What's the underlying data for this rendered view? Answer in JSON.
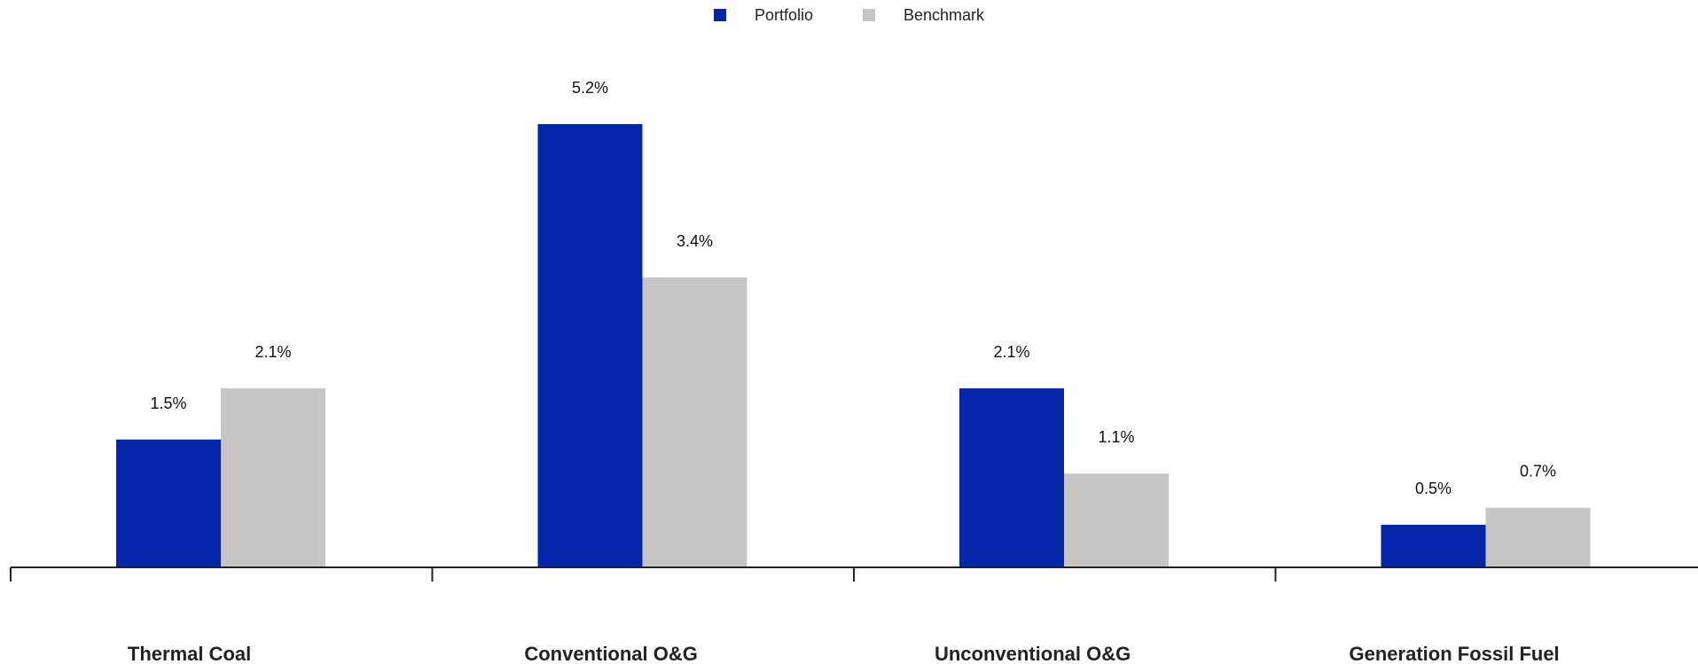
{
  "chart_data": {
    "type": "bar",
    "categories": [
      "Thermal Coal",
      "Conventional O&G",
      "Unconventional O&G",
      "Generation Fossil Fuel"
    ],
    "series": [
      {
        "name": "Portfolio",
        "color": "#0626AA",
        "values": [
          1.5,
          5.2,
          2.1,
          0.5
        ],
        "labels": [
          "1.5%",
          "5.2%",
          "2.1%",
          "0.5%"
        ]
      },
      {
        "name": "Benchmark",
        "color": "#C7C6C5",
        "values": [
          2.1,
          3.4,
          1.1,
          0.7
        ],
        "labels": [
          "2.1%",
          "3.4%",
          "1.1%",
          "0.7%"
        ]
      }
    ],
    "value_unit": "%",
    "ylim": [
      0,
      6
    ],
    "grid": false,
    "legend_position": "top-center"
  },
  "legend": {
    "portfolio_label": "Portfolio",
    "benchmark_label": "Benchmark"
  }
}
